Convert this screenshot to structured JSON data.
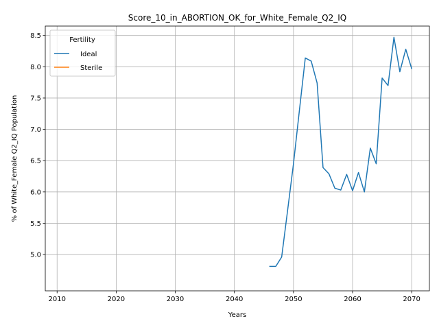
{
  "chart_data": {
    "type": "line",
    "title": "Score_10_in_ABORTION_OK_for_White_Female_Q2_IQ",
    "xlabel": "Years",
    "ylabel": "% of White_Female Q2_IQ Population",
    "xlim": [
      2008.0,
      2073.0
    ],
    "ylim": [
      4.42,
      8.65
    ],
    "xticks": [
      2010,
      2020,
      2030,
      2040,
      2050,
      2060,
      2070
    ],
    "xtick_labels": [
      "2010",
      "2020",
      "2030",
      "2040",
      "2050",
      "2060",
      "2070"
    ],
    "yticks": [
      5.0,
      5.5,
      6.0,
      6.5,
      7.0,
      7.5,
      8.0,
      8.5
    ],
    "ytick_labels": [
      "5.0",
      "5.5",
      "6.0",
      "6.5",
      "7.0",
      "7.5",
      "8.0",
      "8.5"
    ],
    "grid": true,
    "legend": {
      "title": "Fertility",
      "placement": "top-left",
      "entries": [
        "Ideal",
        "Sterile"
      ]
    },
    "series": [
      {
        "name": "Ideal",
        "color": "#1f77b4",
        "x": [
          2046,
          2047,
          2048,
          2049,
          2050,
          2051,
          2052,
          2053,
          2054,
          2055,
          2056,
          2057,
          2058,
          2059,
          2060,
          2061,
          2062,
          2063,
          2064,
          2065,
          2066,
          2067,
          2068,
          2069,
          2070
        ],
        "y": [
          4.81,
          4.81,
          4.96,
          5.7,
          6.45,
          7.3,
          8.14,
          8.09,
          7.74,
          6.39,
          6.29,
          6.06,
          6.03,
          6.28,
          6.02,
          6.31,
          6.0,
          6.7,
          6.45,
          7.82,
          7.7,
          8.47,
          7.92,
          8.28,
          7.97
        ]
      },
      {
        "name": "Sterile",
        "color": "#ff7f0e",
        "x": [],
        "y": []
      }
    ]
  }
}
